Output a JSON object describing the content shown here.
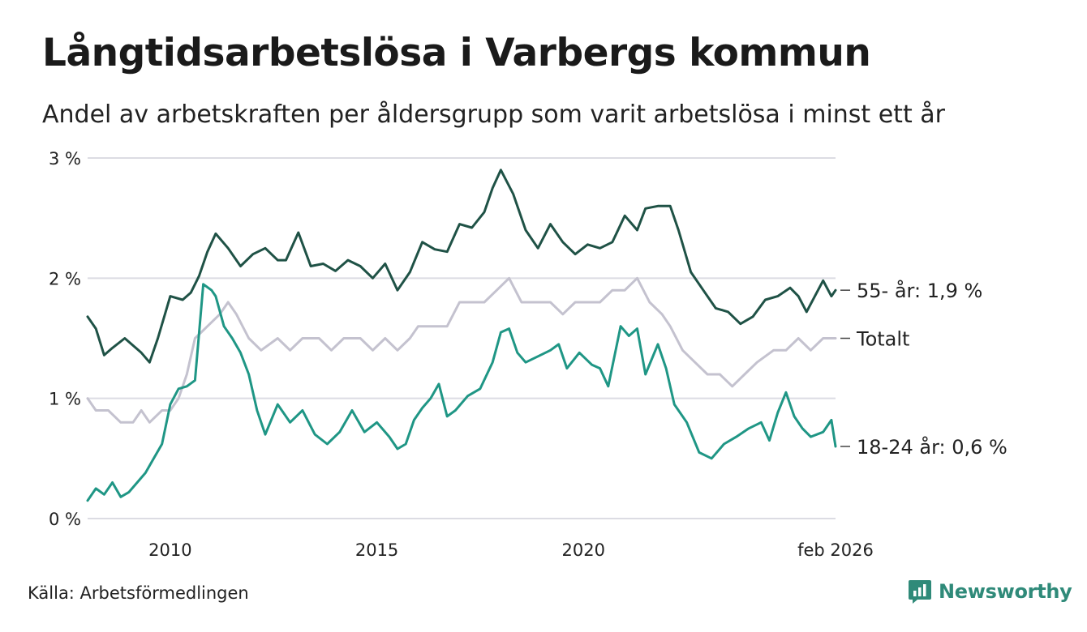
{
  "chart_data": {
    "type": "line",
    "title": "Långtidsarbetslösa i Varbergs kommun",
    "subtitle": "Andel av arbetskraften per åldersgrupp som varit arbetslösa i minst ett år",
    "ylabel": "",
    "xlabel": "",
    "ylim": [
      0,
      3
    ],
    "xlim": [
      2008.0,
      2026.1
    ],
    "y_ticks": [
      {
        "value": 0,
        "label": "0 %"
      },
      {
        "value": 1,
        "label": "1 %"
      },
      {
        "value": 2,
        "label": "2 %"
      },
      {
        "value": 3,
        "label": "3 %"
      }
    ],
    "x_ticks": [
      {
        "value": 2010,
        "label": "2010"
      },
      {
        "value": 2015,
        "label": "2015"
      },
      {
        "value": 2020,
        "label": "2020"
      },
      {
        "value": 2026.1,
        "label": "feb 2026"
      }
    ],
    "grid": true,
    "series": [
      {
        "name": "55- år",
        "end_label": "55- år: 1,9 %",
        "color": "#1f5246",
        "x": [
          2008.0,
          2008.2,
          2008.4,
          2008.6,
          2008.9,
          2009.1,
          2009.3,
          2009.5,
          2009.7,
          2010.0,
          2010.3,
          2010.5,
          2010.7,
          2010.9,
          2011.1,
          2011.4,
          2011.7,
          2012.0,
          2012.3,
          2012.6,
          2012.8,
          2013.1,
          2013.4,
          2013.7,
          2014.0,
          2014.3,
          2014.6,
          2014.9,
          2015.2,
          2015.5,
          2015.8,
          2016.1,
          2016.4,
          2016.7,
          2017.0,
          2017.3,
          2017.6,
          2017.8,
          2018.0,
          2018.3,
          2018.6,
          2018.9,
          2019.2,
          2019.5,
          2019.8,
          2020.1,
          2020.4,
          2020.7,
          2021.0,
          2021.3,
          2021.5,
          2021.8,
          2022.1,
          2022.3,
          2022.6,
          2022.9,
          2023.2,
          2023.5,
          2023.8,
          2024.1,
          2024.4,
          2024.7,
          2025.0,
          2025.2,
          2025.4,
          2025.6,
          2025.8,
          2026.0,
          2026.1
        ],
        "values": [
          1.68,
          1.58,
          1.36,
          1.42,
          1.5,
          1.44,
          1.38,
          1.3,
          1.5,
          1.85,
          1.82,
          1.88,
          2.02,
          2.22,
          2.37,
          2.25,
          2.1,
          2.2,
          2.25,
          2.15,
          2.15,
          2.38,
          2.1,
          2.12,
          2.06,
          2.15,
          2.1,
          2.0,
          2.12,
          1.9,
          2.05,
          2.3,
          2.24,
          2.22,
          2.45,
          2.42,
          2.55,
          2.75,
          2.9,
          2.7,
          2.4,
          2.25,
          2.45,
          2.3,
          2.2,
          2.28,
          2.25,
          2.3,
          2.52,
          2.4,
          2.58,
          2.6,
          2.6,
          2.4,
          2.05,
          1.9,
          1.75,
          1.72,
          1.62,
          1.68,
          1.82,
          1.85,
          1.92,
          1.85,
          1.72,
          1.85,
          1.98,
          1.85,
          1.9
        ]
      },
      {
        "name": "Totalt",
        "end_label": "Totalt",
        "color": "#c4c2cf",
        "x": [
          2008.0,
          2008.2,
          2008.5,
          2008.8,
          2009.1,
          2009.3,
          2009.5,
          2009.8,
          2010.0,
          2010.2,
          2010.4,
          2010.6,
          2010.9,
          2011.2,
          2011.4,
          2011.6,
          2011.9,
          2012.2,
          2012.6,
          2012.9,
          2013.2,
          2013.6,
          2013.9,
          2014.2,
          2014.6,
          2014.9,
          2015.2,
          2015.5,
          2015.8,
          2016.0,
          2016.3,
          2016.7,
          2017.0,
          2017.3,
          2017.6,
          2017.9,
          2018.2,
          2018.5,
          2018.8,
          2019.2,
          2019.5,
          2019.8,
          2020.1,
          2020.4,
          2020.7,
          2021.0,
          2021.3,
          2021.6,
          2021.9,
          2022.1,
          2022.4,
          2022.7,
          2023.0,
          2023.3,
          2023.6,
          2023.9,
          2024.2,
          2024.6,
          2024.9,
          2025.2,
          2025.5,
          2025.8,
          2026.1
        ],
        "values": [
          1.0,
          0.9,
          0.9,
          0.8,
          0.8,
          0.9,
          0.8,
          0.9,
          0.9,
          1.0,
          1.2,
          1.5,
          1.6,
          1.7,
          1.8,
          1.7,
          1.5,
          1.4,
          1.5,
          1.4,
          1.5,
          1.5,
          1.4,
          1.5,
          1.5,
          1.4,
          1.5,
          1.4,
          1.5,
          1.6,
          1.6,
          1.6,
          1.8,
          1.8,
          1.8,
          1.9,
          2.0,
          1.8,
          1.8,
          1.8,
          1.7,
          1.8,
          1.8,
          1.8,
          1.9,
          1.9,
          2.0,
          1.8,
          1.7,
          1.6,
          1.4,
          1.3,
          1.2,
          1.2,
          1.1,
          1.2,
          1.3,
          1.4,
          1.4,
          1.5,
          1.4,
          1.5,
          1.5
        ]
      },
      {
        "name": "18-24 år",
        "end_label": "18-24 år: 0,6 %",
        "color": "#1f9685",
        "x": [
          2008.0,
          2008.2,
          2008.4,
          2008.6,
          2008.8,
          2009.0,
          2009.2,
          2009.4,
          2009.6,
          2009.8,
          2010.0,
          2010.2,
          2010.4,
          2010.6,
          2010.8,
          2011.0,
          2011.1,
          2011.3,
          2011.5,
          2011.7,
          2011.9,
          2012.1,
          2012.3,
          2012.6,
          2012.9,
          2013.2,
          2013.5,
          2013.8,
          2014.1,
          2014.4,
          2014.7,
          2015.0,
          2015.3,
          2015.5,
          2015.7,
          2015.9,
          2016.1,
          2016.3,
          2016.5,
          2016.7,
          2016.9,
          2017.2,
          2017.5,
          2017.8,
          2018.0,
          2018.2,
          2018.4,
          2018.6,
          2018.9,
          2019.2,
          2019.4,
          2019.6,
          2019.9,
          2020.2,
          2020.4,
          2020.6,
          2020.9,
          2021.1,
          2021.3,
          2021.5,
          2021.8,
          2022.0,
          2022.2,
          2022.5,
          2022.8,
          2023.1,
          2023.4,
          2023.7,
          2024.0,
          2024.3,
          2024.5,
          2024.7,
          2024.9,
          2025.1,
          2025.3,
          2025.5,
          2025.8,
          2026.0,
          2026.1
        ],
        "values": [
          0.15,
          0.25,
          0.2,
          0.3,
          0.18,
          0.22,
          0.3,
          0.38,
          0.5,
          0.62,
          0.95,
          1.08,
          1.1,
          1.15,
          1.95,
          1.9,
          1.85,
          1.6,
          1.5,
          1.38,
          1.2,
          0.9,
          0.7,
          0.95,
          0.8,
          0.9,
          0.7,
          0.62,
          0.72,
          0.9,
          0.72,
          0.8,
          0.68,
          0.58,
          0.62,
          0.82,
          0.92,
          1.0,
          1.12,
          0.85,
          0.9,
          1.02,
          1.08,
          1.3,
          1.55,
          1.58,
          1.38,
          1.3,
          1.35,
          1.4,
          1.45,
          1.25,
          1.38,
          1.28,
          1.25,
          1.1,
          1.6,
          1.52,
          1.58,
          1.2,
          1.45,
          1.25,
          0.95,
          0.8,
          0.55,
          0.5,
          0.62,
          0.68,
          0.75,
          0.8,
          0.65,
          0.88,
          1.05,
          0.85,
          0.75,
          0.68,
          0.72,
          0.82,
          0.6
        ]
      }
    ]
  },
  "source": "Källa: Arbetsförmedlingen",
  "brand": "Newsworthy",
  "brand_color": "#2f8a79"
}
